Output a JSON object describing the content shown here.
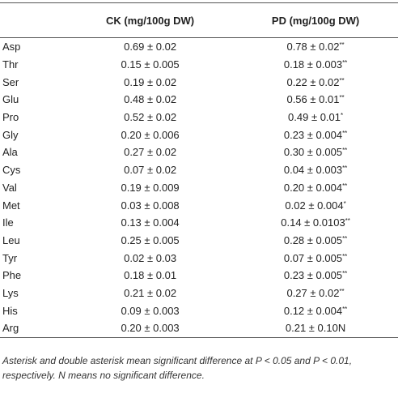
{
  "table": {
    "header": [
      "CK (mg/100g DW)",
      "PD (mg/100g DW)"
    ],
    "rows": [
      [
        "Asp",
        {
          "value": "0.69 ± 0.02",
          "sig": ""
        },
        {
          "value": "0.78 ± 0.02",
          "sig": "**"
        }
      ],
      [
        "Thr",
        {
          "value": "0.15 ± 0.005",
          "sig": ""
        },
        {
          "value": "0.18 ± 0.003",
          "sig": "**"
        }
      ],
      [
        "Ser",
        {
          "value": "0.19 ± 0.02",
          "sig": ""
        },
        {
          "value": "0.22 ± 0.02",
          "sig": "**"
        }
      ],
      [
        "Glu",
        {
          "value": "0.48 ± 0.02",
          "sig": ""
        },
        {
          "value": "0.56 ± 0.01",
          "sig": "**"
        }
      ],
      [
        "Pro",
        {
          "value": "0.52 ± 0.02",
          "sig": ""
        },
        {
          "value": "0.49 ± 0.01",
          "sig": "*"
        }
      ],
      [
        "Gly",
        {
          "value": "0.20 ± 0.006",
          "sig": ""
        },
        {
          "value": "0.23 ± 0.004",
          "sig": "**"
        }
      ],
      [
        "Ala",
        {
          "value": "0.27 ± 0.02",
          "sig": ""
        },
        {
          "value": "0.30 ± 0.005",
          "sig": "**"
        }
      ],
      [
        "Cys",
        {
          "value": "0.07 ± 0.02",
          "sig": ""
        },
        {
          "value": "0.04 ± 0.003",
          "sig": "**"
        }
      ],
      [
        "Val",
        {
          "value": "0.19 ± 0.009",
          "sig": ""
        },
        {
          "value": "0.20 ± 0.004",
          "sig": "**"
        }
      ],
      [
        "Met",
        {
          "value": "0.03 ± 0.008",
          "sig": ""
        },
        {
          "value": "0.02 ± 0.004",
          "sig": "*"
        }
      ],
      [
        "Ile",
        {
          "value": "0.13 ± 0.004",
          "sig": ""
        },
        {
          "value": "0.14 ± 0.0103",
          "sig": "**"
        }
      ],
      [
        "Leu",
        {
          "value": "0.25 ± 0.005",
          "sig": ""
        },
        {
          "value": "0.28 ± 0.005",
          "sig": "**"
        }
      ],
      [
        "Tyr",
        {
          "value": "0.02 ± 0.03",
          "sig": ""
        },
        {
          "value": "0.07 ± 0.005",
          "sig": "**"
        }
      ],
      [
        "Phe",
        {
          "value": "0.18 ± 0.01",
          "sig": ""
        },
        {
          "value": "0.23 ± 0.005",
          "sig": "**"
        }
      ],
      [
        "Lys",
        {
          "value": "0.21 ± 0.02",
          "sig": ""
        },
        {
          "value": "0.27 ± 0.02",
          "sig": "**"
        }
      ],
      [
        "His",
        {
          "value": "0.09 ± 0.003",
          "sig": ""
        },
        {
          "value": "0.12 ± 0.004",
          "sig": "**"
        }
      ],
      [
        "Arg",
        {
          "value": "0.20 ± 0.003",
          "sig": ""
        },
        {
          "value": "0.21 ± 0.10N",
          "sig": ""
        }
      ]
    ]
  },
  "footnote": "Asterisk and double asterisk mean significant difference at P < 0.05 and P < 0.01, respectively. N means no significant difference."
}
